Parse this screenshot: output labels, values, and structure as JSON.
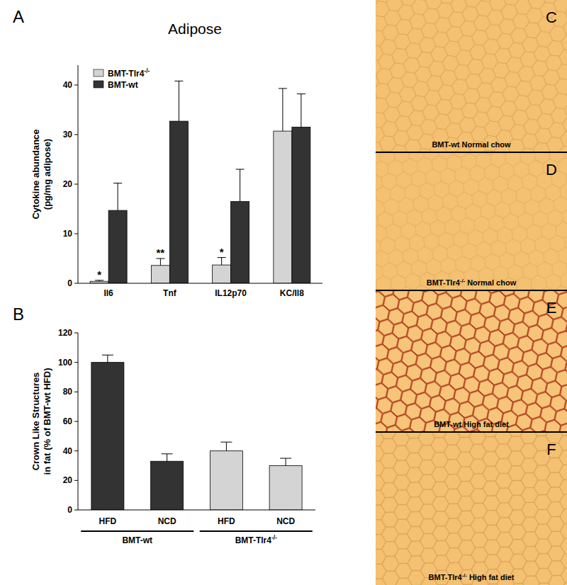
{
  "chart_data": [
    {
      "type": "bar",
      "panel_label": "A",
      "title": "Adipose",
      "ylabel": [
        "Cytokine abundance",
        "(pg/mg adipose)"
      ],
      "categories": [
        "Il6",
        "Tnf",
        "IL12p70",
        "KC/Il8"
      ],
      "series": [
        {
          "name": "BMT-Tlr4-/-",
          "color": "#d4d4d4",
          "values": [
            0.4,
            3.6,
            3.7,
            30.7
          ],
          "errors": [
            0.2,
            1.4,
            1.5,
            8.6
          ],
          "annotations": [
            "*",
            "**",
            "*",
            null
          ]
        },
        {
          "name": "BMT-wt",
          "color": "#333333",
          "values": [
            14.7,
            32.7,
            16.5,
            31.5
          ],
          "errors": [
            5.5,
            8.1,
            6.5,
            6.7
          ]
        }
      ],
      "ylim": [
        0,
        44
      ],
      "yticks": [
        0,
        10,
        20,
        30,
        40
      ],
      "legend": "top-left",
      "grid": false
    },
    {
      "type": "bar",
      "panel_label": "B",
      "ylabel": [
        "Crown Like Structures",
        "in fat (% of BMT-wt HFD)"
      ],
      "categories": [
        "HFD",
        "NCD",
        "HFD",
        "NCD"
      ],
      "group_labels": [
        "BMT-wt",
        "BMT-wt",
        "BMT-Tlr4-/-",
        "BMT-Tlr4-/-"
      ],
      "values": [
        100,
        33,
        40,
        30
      ],
      "errors": [
        5,
        5,
        6,
        5
      ],
      "colors": [
        "#333333",
        "#333333",
        "#d4d4d4",
        "#d4d4d4"
      ],
      "ylim": [
        0,
        120
      ],
      "yticks": [
        0,
        20,
        40,
        60,
        80,
        100,
        120
      ],
      "grid": false
    }
  ],
  "panels": [
    {
      "letter": "C",
      "caption": "BMT-wt Normal chow"
    },
    {
      "letter": "D",
      "caption": "BMT-Tlr4-/- Normal chow"
    },
    {
      "letter": "E",
      "caption": "BMT-wt High fat diet"
    },
    {
      "letter": "F",
      "caption": "BMT-Tlr4-/- High fat diet"
    }
  ]
}
